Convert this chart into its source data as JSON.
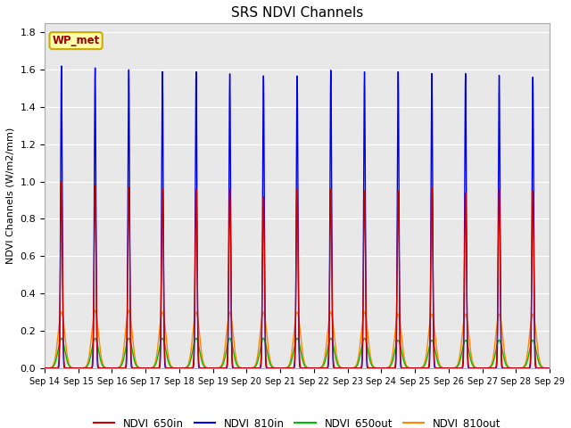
{
  "title": "SRS NDVI Channels",
  "ylabel": "NDVI Channels (W/m2/mm)",
  "xlabel": "",
  "ylim": [
    0,
    1.85
  ],
  "yticks": [
    0.0,
    0.2,
    0.4,
    0.6,
    0.8,
    1.0,
    1.2,
    1.4,
    1.6,
    1.8
  ],
  "xtick_labels": [
    "Sep 14",
    "Sep 15",
    "Sep 16",
    "Sep 17",
    "Sep 18",
    "Sep 19",
    "Sep 20",
    "Sep 21",
    "Sep 22",
    "Sep 23",
    "Sep 24",
    "Sep 25",
    "Sep 26",
    "Sep 27",
    "Sep 28",
    "Sep 29"
  ],
  "colors": {
    "NDVI_650in": "#cc0000",
    "NDVI_810in": "#0000ee",
    "NDVI_650out": "#00bb00",
    "NDVI_810out": "#ff8800"
  },
  "legend_labels": [
    "NDVI_650in",
    "NDVI_810in",
    "NDVI_650out",
    "NDVI_810out"
  ],
  "annotation_text": "WP_met",
  "annotation_bg": "#ffffaa",
  "annotation_text_color": "#990000",
  "annotation_edge_color": "#ccaa00",
  "bg_color": "#e8e8e8",
  "peak_650in": [
    1.0,
    0.98,
    0.97,
    0.96,
    0.96,
    0.96,
    0.92,
    0.96,
    0.96,
    0.95,
    0.95,
    0.97,
    0.94,
    0.96,
    0.95
  ],
  "peak_810in": [
    1.62,
    1.61,
    1.6,
    1.59,
    1.59,
    1.58,
    1.57,
    1.57,
    1.6,
    1.59,
    1.59,
    1.58,
    1.58,
    1.57,
    1.56
  ],
  "peak_650out": [
    0.16,
    0.16,
    0.16,
    0.16,
    0.16,
    0.16,
    0.16,
    0.16,
    0.16,
    0.16,
    0.15,
    0.15,
    0.15,
    0.15,
    0.15
  ],
  "peak_810out": [
    0.3,
    0.31,
    0.31,
    0.3,
    0.3,
    0.3,
    0.3,
    0.3,
    0.3,
    0.3,
    0.29,
    0.29,
    0.29,
    0.29,
    0.29
  ],
  "sigma_in": 0.03,
  "sigma_out": 0.1,
  "n_days": 15,
  "points_per_day": 288
}
